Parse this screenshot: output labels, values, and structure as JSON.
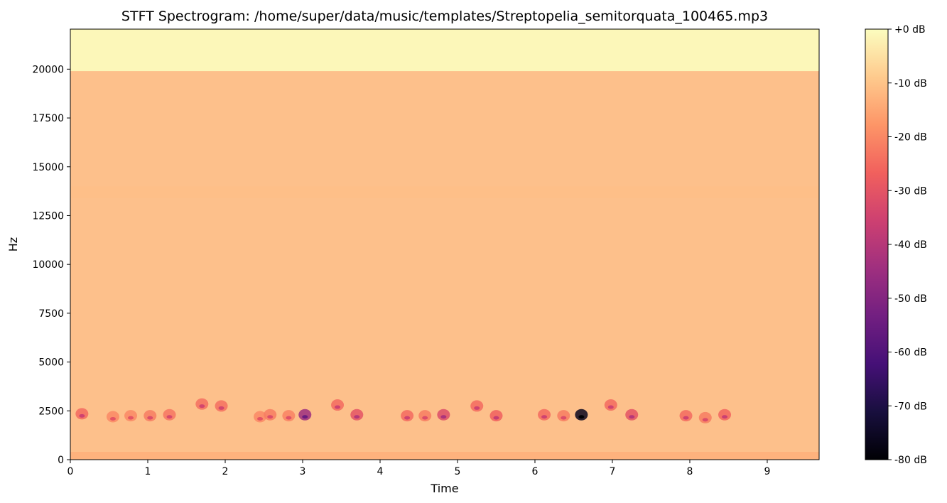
{
  "chart_data": {
    "type": "heatmap",
    "title": "STFT Spectrogram: /home/super/data/music/templates/Streptopelia_semitorquata_100465.mp3",
    "xlabel": "Time",
    "ylabel": "Hz",
    "xlim": [
      0,
      9.67
    ],
    "ylim": [
      0,
      22050
    ],
    "x_ticks": [
      0,
      1,
      2,
      3,
      4,
      5,
      6,
      7,
      8,
      9
    ],
    "x_tick_labels": [
      "0",
      "1",
      "2",
      "3",
      "4",
      "5",
      "6",
      "7",
      "8",
      "9"
    ],
    "y_ticks": [
      0,
      2500,
      5000,
      7500,
      10000,
      12500,
      15000,
      17500,
      20000
    ],
    "y_tick_labels": [
      "0",
      "2500",
      "5000",
      "7500",
      "10000",
      "12500",
      "15000",
      "17500",
      "20000"
    ],
    "colormap": "magma",
    "colorbar": {
      "range_db": [
        -80,
        0
      ],
      "ticks": [
        0,
        -10,
        -20,
        -30,
        -40,
        -50,
        -60,
        -70,
        -80
      ],
      "tick_labels": [
        "+0 dB",
        "-10 dB",
        "-20 dB",
        "-30 dB",
        "-40 dB",
        "-50 dB",
        "-60 dB",
        "-70 dB",
        "-80 dB"
      ]
    },
    "background_level_db": -8,
    "cutoff_band": {
      "from_hz": 19900,
      "to_hz": 22050,
      "level_db": -1
    },
    "low_band": {
      "from_hz": 0,
      "to_hz": 400,
      "level_db": -14
    },
    "high_band": {
      "center_hz": 13700,
      "level_db": -11
    },
    "calls": [
      {
        "t": 0.15,
        "hz": 2350,
        "db": -25
      },
      {
        "t": 0.55,
        "hz": 2200,
        "db": -20
      },
      {
        "t": 0.78,
        "hz": 2250,
        "db": -20
      },
      {
        "t": 1.03,
        "hz": 2250,
        "db": -22
      },
      {
        "t": 1.28,
        "hz": 2300,
        "db": -23
      },
      {
        "t": 1.7,
        "hz": 2850,
        "db": -24
      },
      {
        "t": 1.95,
        "hz": 2750,
        "db": -24
      },
      {
        "t": 2.45,
        "hz": 2200,
        "db": -20
      },
      {
        "t": 2.58,
        "hz": 2300,
        "db": -22
      },
      {
        "t": 2.82,
        "hz": 2250,
        "db": -21
      },
      {
        "t": 3.03,
        "hz": 2300,
        "db": -45
      },
      {
        "t": 3.45,
        "hz": 2800,
        "db": -25
      },
      {
        "t": 3.7,
        "hz": 2300,
        "db": -30
      },
      {
        "t": 4.35,
        "hz": 2250,
        "db": -25
      },
      {
        "t": 4.58,
        "hz": 2250,
        "db": -22
      },
      {
        "t": 4.82,
        "hz": 2300,
        "db": -32
      },
      {
        "t": 5.25,
        "hz": 2750,
        "db": -25
      },
      {
        "t": 5.5,
        "hz": 2250,
        "db": -27
      },
      {
        "t": 6.12,
        "hz": 2300,
        "db": -25
      },
      {
        "t": 6.37,
        "hz": 2250,
        "db": -22
      },
      {
        "t": 6.6,
        "hz": 2300,
        "db": -76
      },
      {
        "t": 6.98,
        "hz": 2800,
        "db": -25
      },
      {
        "t": 7.25,
        "hz": 2300,
        "db": -30
      },
      {
        "t": 7.95,
        "hz": 2250,
        "db": -25
      },
      {
        "t": 8.2,
        "hz": 2150,
        "db": -22
      },
      {
        "t": 8.45,
        "hz": 2300,
        "db": -26
      }
    ]
  }
}
